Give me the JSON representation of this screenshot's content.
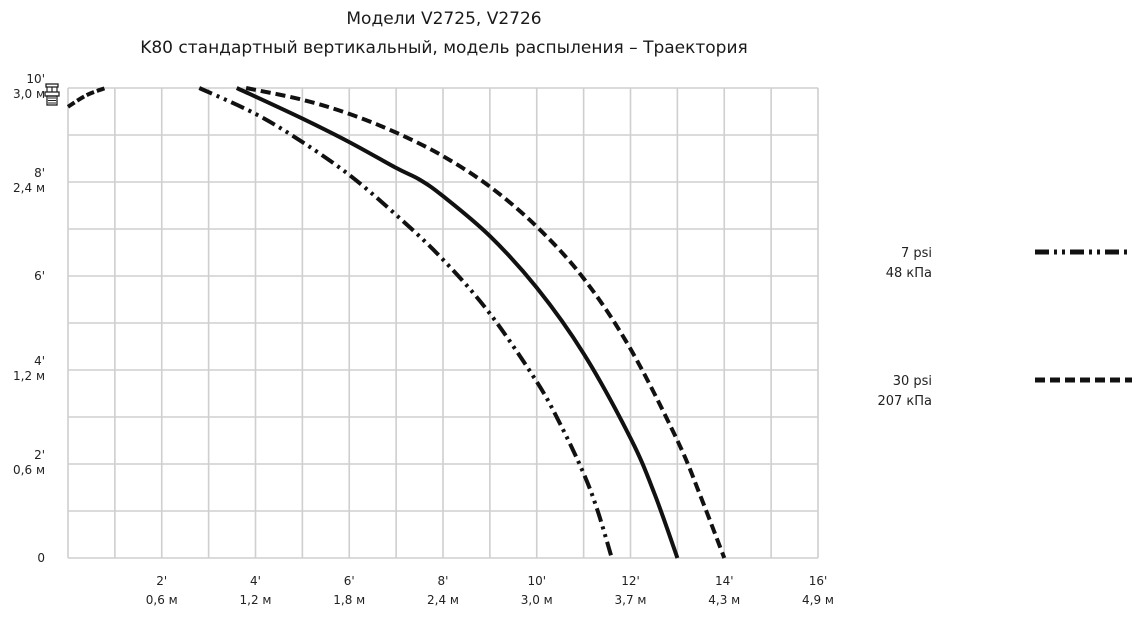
{
  "chart_data": {
    "type": "line",
    "title": "Модели V2725, V2726",
    "subtitle": "K80 стандартный вертикальный, модель распыления – Траектория",
    "xlabel": "",
    "ylabel": "",
    "xlim": [
      0,
      16
    ],
    "ylim": [
      0,
      10
    ],
    "grid": true,
    "x_ticks": [
      {
        "value": 2,
        "ft": "2'",
        "m": "0,6 м"
      },
      {
        "value": 4,
        "ft": "4'",
        "m": "1,2 м"
      },
      {
        "value": 6,
        "ft": "6'",
        "m": "1,8 м"
      },
      {
        "value": 8,
        "ft": "8'",
        "m": "2,4 м"
      },
      {
        "value": 10,
        "ft": "10'",
        "m": "3,0 м"
      },
      {
        "value": 12,
        "ft": "12'",
        "m": "3,7 м"
      },
      {
        "value": 14,
        "ft": "14'",
        "m": "4,3 м"
      },
      {
        "value": 16,
        "ft": "16'",
        "m": "4,9 м"
      }
    ],
    "y_ticks": [
      {
        "value": 0,
        "ft": "0",
        "m": ""
      },
      {
        "value": 2,
        "ft": "2'",
        "m": "0,6 м"
      },
      {
        "value": 4,
        "ft": "4'",
        "m": "1,2 м"
      },
      {
        "value": 6,
        "ft": "6'",
        "m": "",
        "minor": true
      },
      {
        "value": 8,
        "ft": "8'",
        "m": "2,4 м"
      },
      {
        "value": 10,
        "ft": "10'",
        "m": "3,0 м"
      }
    ],
    "series": [
      {
        "name": "7 psi",
        "name2": "48 кПа",
        "dash": "dash-dot-dot",
        "x": [
          2.8,
          4.0,
          5.0,
          6.0,
          7.0,
          8.0,
          9.0,
          10.0,
          10.5,
          11.0,
          11.3,
          11.6
        ],
        "y": [
          10,
          9.45,
          8.85,
          8.15,
          7.3,
          6.35,
          5.2,
          3.75,
          2.85,
          1.8,
          1.0,
          0
        ]
      },
      {
        "name": "",
        "dash": "solid",
        "x": [
          3.6,
          5.0,
          6.0,
          7.0,
          7.5,
          8.0,
          9.0,
          10.0,
          11.0,
          12.0,
          12.5,
          13.0
        ],
        "y": [
          10,
          9.35,
          8.85,
          8.3,
          8.05,
          7.7,
          6.85,
          5.75,
          4.35,
          2.55,
          1.4,
          0
        ]
      },
      {
        "name": "30 psi",
        "name2": "207 кПа",
        "dash": "dashed",
        "x": [
          3.8,
          5.0,
          6.0,
          7.0,
          8.0,
          9.0,
          10.0,
          11.0,
          12.0,
          13.0,
          13.5,
          14.0
        ],
        "y": [
          10,
          9.75,
          9.45,
          9.05,
          8.55,
          7.9,
          7.05,
          5.95,
          4.45,
          2.5,
          1.3,
          0
        ]
      }
    ],
    "source_arc": {
      "x": [
        0,
        0.4,
        0.8
      ],
      "y": [
        9.6,
        9.85,
        10
      ]
    }
  },
  "icons": {
    "sprinkler": "sprinkler-icon"
  }
}
